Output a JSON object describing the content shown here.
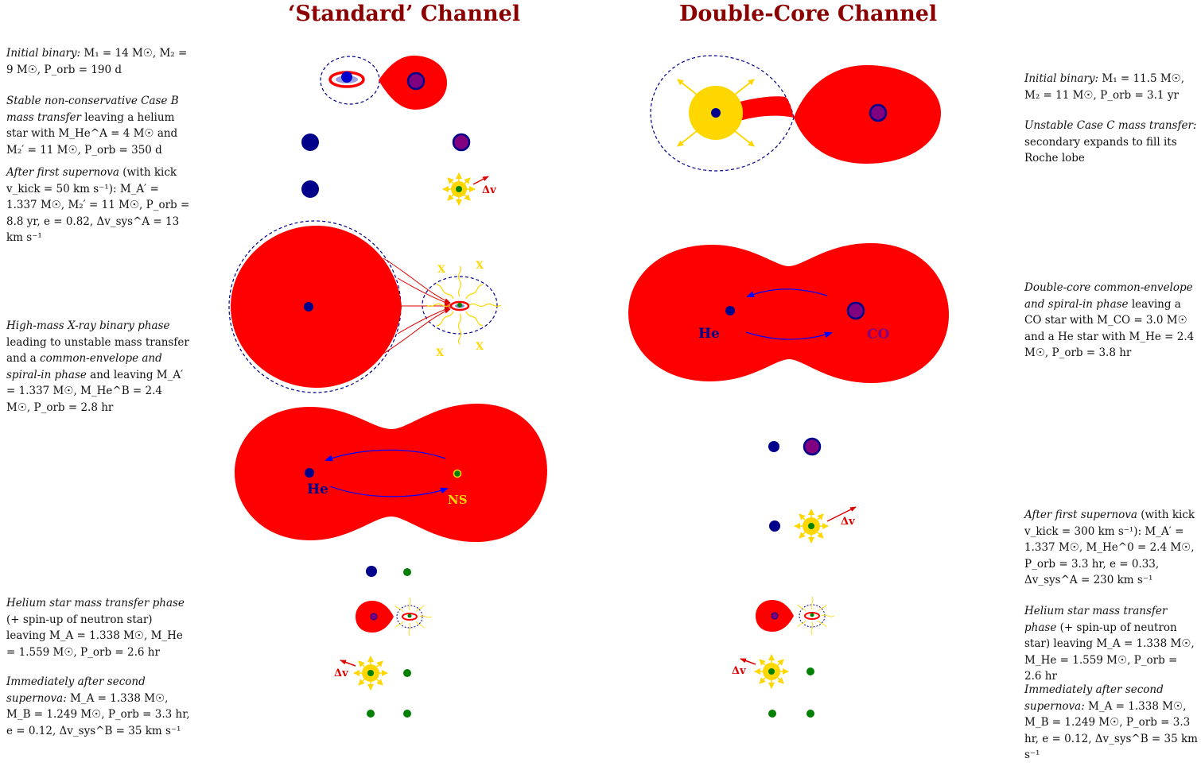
{
  "titles": {
    "standard": "‘Standard’ Channel",
    "double_core": "Double-Core Channel"
  },
  "standard_stages": [
    {
      "id": "s1",
      "parts": [
        {
          "t": "Initial binary:",
          "i": true
        },
        {
          "t": " M₁ = 14 M☉, M₂ = 9 M☉, P_orb = 190 d"
        }
      ]
    },
    {
      "id": "s2",
      "parts": [
        {
          "t": "Stable non-conservative Case B mass transfer",
          "i": true
        },
        {
          "t": " leaving a helium star with M_He^A = 4 M☉ and M₂′ = 11 M☉, P_orb = 350 d"
        }
      ]
    },
    {
      "id": "s3",
      "parts": [
        {
          "t": "After first supernova",
          "i": true
        },
        {
          "t": " (with kick v_kick = 50 km s⁻¹): M_A′ = 1.337 M☉, M₂′ = 11 M☉, P_orb = 8.8 yr, e = 0.82, Δv_sys^A = 13 km s⁻¹"
        }
      ]
    },
    {
      "id": "s4",
      "parts": [
        {
          "t": "High-mass X-ray binary phase",
          "i": true
        },
        {
          "t": " leading to unstable mass transfer and a "
        },
        {
          "t": "common-envelope and spiral-in phase",
          "i": true
        },
        {
          "t": " and leaving M_A′ = 1.337 M☉, M_He^B = 2.4 M☉, P_orb = 2.8 hr"
        }
      ]
    },
    {
      "id": "s5",
      "parts": [
        {
          "t": "Helium star mass transfer phase",
          "i": true
        },
        {
          "t": " (+ spin-up of neutron star) leaving M_A = 1.338 M☉, M_He = 1.559 M☉, P_orb = 2.6 hr"
        }
      ]
    },
    {
      "id": "s6",
      "parts": [
        {
          "t": "Immediately after second supernova:",
          "i": true
        },
        {
          "t": " M_A = 1.338 M☉, M_B = 1.249 M☉, P_orb = 3.3 hr, e = 0.12, Δv_sys^B = 35 km s⁻¹"
        }
      ]
    }
  ],
  "double_core_stages": [
    {
      "id": "d1",
      "parts": [
        {
          "t": "Initial binary:",
          "i": true
        },
        {
          "t": " M₁ = 11.5 M☉, M₂ = 11 M☉, P_orb = 3.1 yr"
        }
      ]
    },
    {
      "id": "d2",
      "parts": [
        {
          "t": "Unstable Case C mass transfer:",
          "i": true
        },
        {
          "t": " secondary expands to fill its Roche lobe"
        }
      ]
    },
    {
      "id": "d3",
      "parts": [
        {
          "t": "Double-core common-envelope and spiral-in phase",
          "i": true
        },
        {
          "t": " leaving a CO star with M_CO = 3.0 M☉ and a He star with M_He = 2.4 M☉, P_orb = 3.8 hr"
        }
      ]
    },
    {
      "id": "d4",
      "parts": [
        {
          "t": "After first supernova",
          "i": true
        },
        {
          "t": " (with kick v_kick = 300 km s⁻¹): M_A′ = 1.337 M☉, M_He^0 = 2.4 M☉, P_orb = 3.3 hr, e = 0.33, Δv_sys^A = 230 km s⁻¹"
        }
      ]
    },
    {
      "id": "d5",
      "parts": [
        {
          "t": "Helium star mass transfer phase",
          "i": true
        },
        {
          "t": " (+ spin-up of neutron star) leaving M_A = 1.338 M☉, M_He = 1.559 M☉, P_orb = 2.6 hr"
        }
      ]
    },
    {
      "id": "d6",
      "parts": [
        {
          "t": "Immediately after second supernova:",
          "i": true
        },
        {
          "t": " M_A = 1.338 M☉, M_B = 1.249 M☉, P_orb = 3.3 hr, e = 0.12, Δv_sys^B = 35 km s⁻¹"
        }
      ]
    }
  ],
  "diagram_labels": {
    "he": "He",
    "ns": "NS",
    "co": "CO",
    "x_ray": "X",
    "delta_v": "Δv"
  },
  "colors": {
    "title": "#8b0000",
    "envelope": "#ff0000",
    "he_core": "#00008b",
    "co_core": "#800080",
    "neutron_star": "#008000",
    "supernova": "#ffd700",
    "orbit": "#00008b",
    "arrow": "#0000ff"
  }
}
